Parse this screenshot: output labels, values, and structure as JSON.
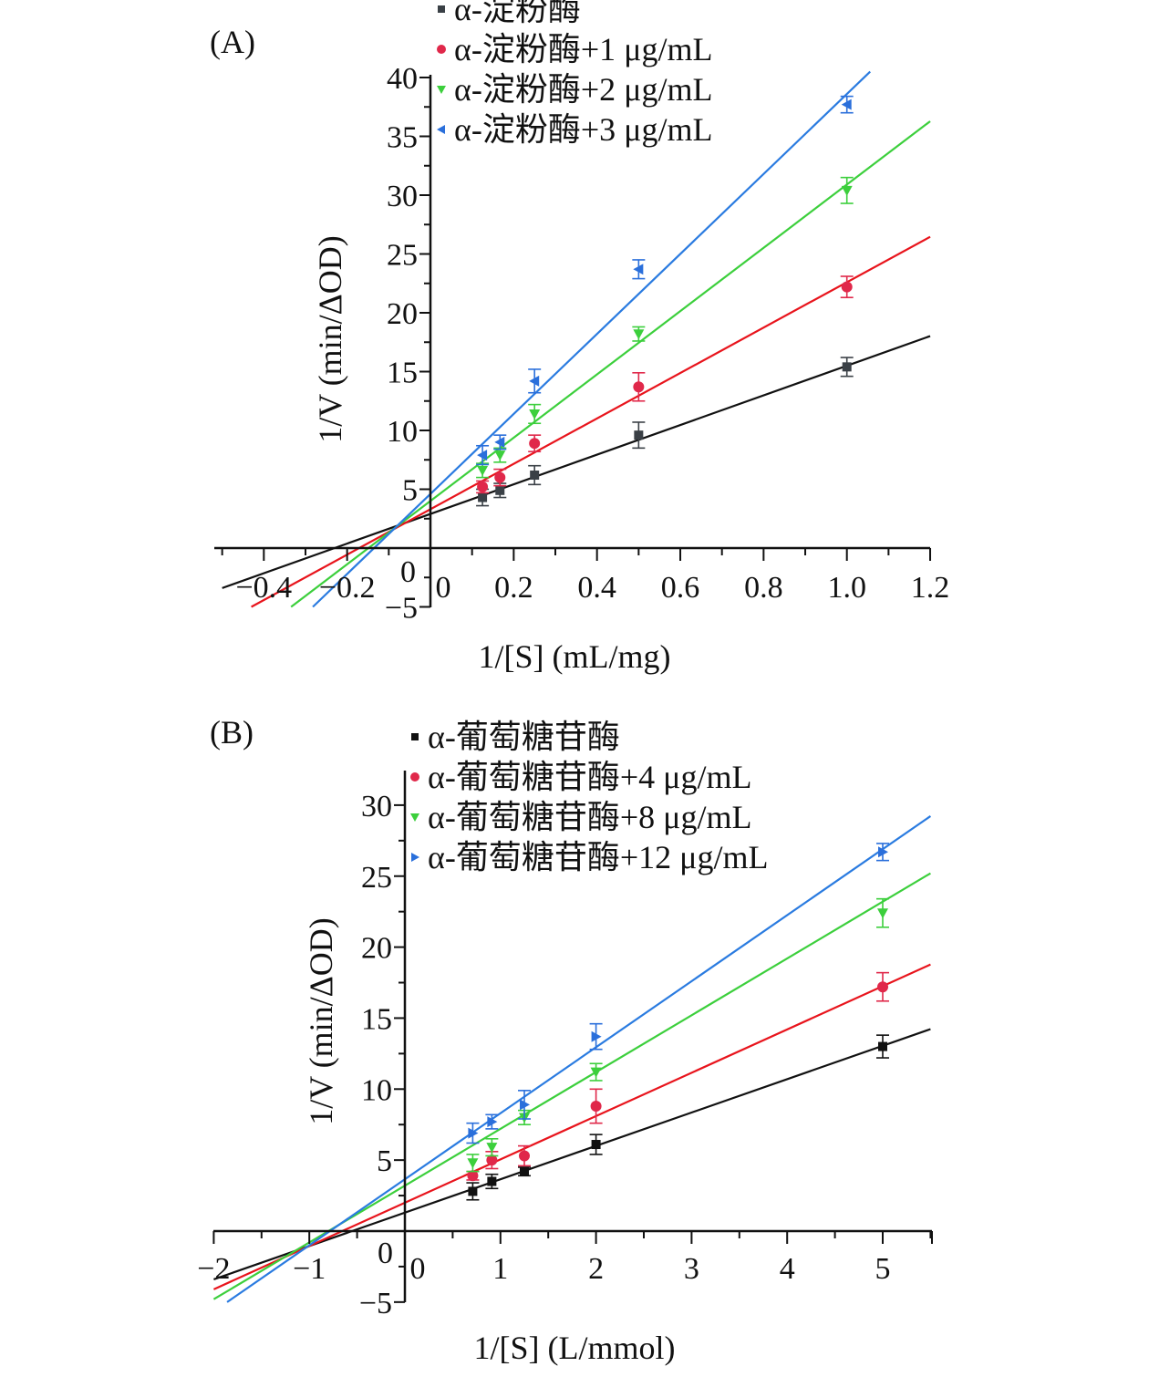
{
  "chart_data": [
    {
      "type": "line",
      "panel": "(A)",
      "title": "",
      "xlabel": "1/[S] (mL/mg)",
      "ylabel": "1/V (min/ΔOD)",
      "xlim": [
        -0.52,
        1.2
      ],
      "ylim": [
        -5,
        40
      ],
      "xticks": [
        -0.4,
        -0.2,
        0,
        0.2,
        0.4,
        0.6,
        0.8,
        1.0,
        1.2
      ],
      "xtick_labels": [
        "−0.4",
        "−0.2",
        "0",
        "0.2",
        "0.4",
        "0.6",
        "0.8",
        "1.0",
        "1.2"
      ],
      "yticks": [
        -5,
        0,
        5,
        10,
        15,
        20,
        25,
        30,
        35,
        40
      ],
      "ytick_labels": [
        "−5",
        "0",
        "5",
        "10",
        "15",
        "20",
        "25",
        "30",
        "35",
        "40"
      ],
      "grid": false,
      "legend_position": "top-left",
      "series": [
        {
          "name": "α-淀粉酶",
          "color": "#3a4046",
          "line_color": "#111111",
          "marker": "square",
          "x": [
            0.125,
            0.167,
            0.25,
            0.5,
            1.0
          ],
          "y": [
            4.3,
            4.9,
            6.2,
            9.6,
            15.4
          ],
          "err": [
            0.7,
            0.6,
            0.8,
            1.1,
            0.8
          ],
          "fit": {
            "slope": 12.6,
            "intercept": 2.9
          }
        },
        {
          "name": "α-淀粉酶+1 μg/mL",
          "color": "#e0284a",
          "line_color": "#e8141c",
          "marker": "circle",
          "x": [
            0.125,
            0.167,
            0.25,
            0.5,
            1.0
          ],
          "y": [
            5.2,
            6.0,
            8.9,
            13.7,
            22.2
          ],
          "err": [
            0.5,
            0.7,
            0.7,
            1.2,
            0.9
          ],
          "fit": {
            "slope": 19.3,
            "intercept": 3.3
          }
        },
        {
          "name": "α-淀粉酶+2 μg/mL",
          "color": "#3ccf3c",
          "line_color": "#3ccf3c",
          "marker": "triangle-down",
          "x": [
            0.125,
            0.167,
            0.25,
            0.5,
            1.0
          ],
          "y": [
            6.6,
            7.9,
            11.4,
            18.2,
            30.4
          ],
          "err": [
            0.6,
            0.6,
            0.8,
            0.6,
            1.1
          ],
          "fit": {
            "slope": 26.9,
            "intercept": 4.0
          }
        },
        {
          "name": "α-淀粉酶+3 μg/mL",
          "color": "#2a6fdb",
          "line_color": "#2a7be0",
          "marker": "triangle-left",
          "x": [
            0.125,
            0.167,
            0.25,
            0.5,
            1.0
          ],
          "y": [
            7.9,
            9.0,
            14.2,
            23.7,
            37.7
          ],
          "err": [
            0.8,
            0.6,
            1.0,
            0.8,
            0.7
          ],
          "fit": {
            "slope": 34.0,
            "intercept": 4.6
          }
        }
      ]
    },
    {
      "type": "line",
      "panel": "(B)",
      "title": "",
      "xlabel": "1/[S] (L/mmol)",
      "ylabel": "1/V (min/ΔOD)",
      "xlim": [
        -2,
        5.5
      ],
      "ylim": [
        -5,
        32
      ],
      "xticks": [
        -2,
        -1,
        0,
        1,
        2,
        3,
        4,
        5
      ],
      "xtick_labels": [
        "−2",
        "−1",
        "0",
        "1",
        "2",
        "3",
        "4",
        "5"
      ],
      "yticks": [
        -5,
        0,
        5,
        10,
        15,
        20,
        25,
        30
      ],
      "ytick_labels": [
        "−5",
        "0",
        "5",
        "10",
        "15",
        "20",
        "25",
        "30"
      ],
      "grid": false,
      "legend_position": "top-left",
      "series": [
        {
          "name": "α-葡萄糖苷酶",
          "color": "#111111",
          "line_color": "#111111",
          "marker": "square",
          "x": [
            0.71,
            0.91,
            1.25,
            2.0,
            5.0
          ],
          "y": [
            2.8,
            3.5,
            4.2,
            6.1,
            13.0
          ],
          "err": [
            0.6,
            0.5,
            0.3,
            0.7,
            0.8
          ],
          "fit": {
            "slope": 2.35,
            "intercept": 1.3
          }
        },
        {
          "name": "α-葡萄糖苷酶+4 μg/mL",
          "color": "#e0284a",
          "line_color": "#e8141c",
          "marker": "circle",
          "x": [
            0.71,
            0.91,
            1.25,
            2.0,
            5.0
          ],
          "y": [
            3.9,
            5.0,
            5.3,
            8.8,
            17.2
          ],
          "err": [
            0.3,
            0.6,
            0.7,
            1.2,
            1.0
          ],
          "fit": {
            "slope": 3.05,
            "intercept": 2.0
          }
        },
        {
          "name": "α-葡萄糖苷酶+8 μg/mL",
          "color": "#3ccf3c",
          "line_color": "#3ccf3c",
          "marker": "triangle-down",
          "x": [
            0.71,
            0.91,
            1.25,
            2.0,
            5.0
          ],
          "y": [
            4.8,
            5.9,
            8.0,
            11.2,
            22.4
          ],
          "err": [
            0.6,
            0.6,
            0.5,
            0.6,
            1.0
          ],
          "fit": {
            "slope": 4.0,
            "intercept": 3.2
          }
        },
        {
          "name": "α-葡萄糖苷酶+12 μg/mL",
          "color": "#2a6fdb",
          "line_color": "#2a7be0",
          "marker": "triangle-right",
          "x": [
            0.71,
            0.91,
            1.25,
            2.0,
            5.0
          ],
          "y": [
            6.9,
            7.7,
            8.9,
            13.7,
            26.7
          ],
          "err": [
            0.7,
            0.5,
            1.0,
            0.9,
            0.6
          ],
          "fit": {
            "slope": 4.65,
            "intercept": 3.65
          }
        }
      ]
    }
  ]
}
